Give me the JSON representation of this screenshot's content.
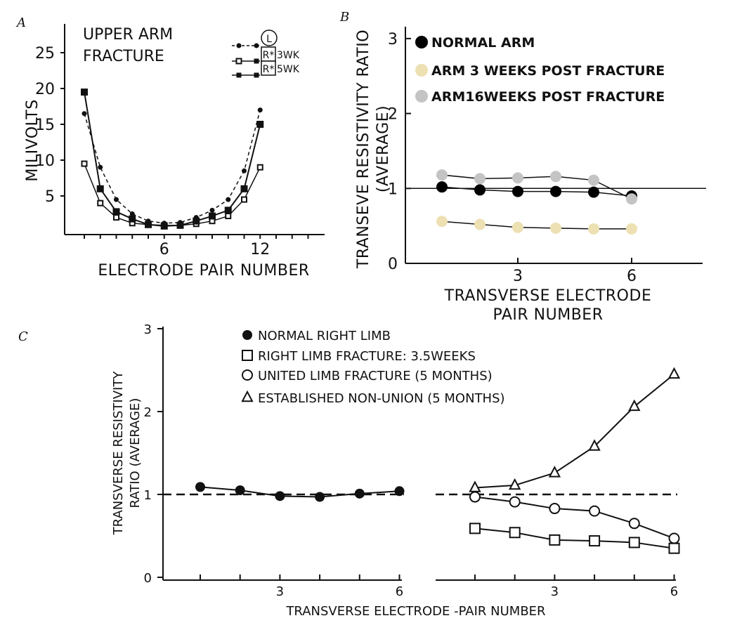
{
  "chart_data": [
    {
      "panel": "A",
      "type": "line",
      "title": [
        "UPPER ARM",
        "FRACTURE"
      ],
      "xlabel": "ELECTRODE PAIR NUMBER",
      "ylabel": "MILIVOLTS",
      "xticks": [
        6,
        12
      ],
      "yticks": [
        5,
        10,
        15,
        20,
        25
      ],
      "xlim": [
        0,
        15
      ],
      "ylim": [
        0,
        30
      ],
      "series": [
        {
          "name": "L",
          "marker": "dot",
          "dashed": true,
          "x": [
            1,
            2,
            3,
            4,
            5,
            6,
            7,
            8,
            9,
            10,
            11,
            12
          ],
          "values": [
            16.5,
            9,
            4.5,
            2.5,
            1.5,
            1.2,
            1.3,
            2,
            3,
            4.5,
            8.5,
            17
          ]
        },
        {
          "name": "R* 3WK",
          "marker": "open-square",
          "dashed": false,
          "x": [
            1,
            2,
            3,
            4,
            5,
            6,
            7,
            8,
            9,
            10,
            11,
            12
          ],
          "values": [
            9.5,
            4,
            2,
            1.2,
            1,
            0.9,
            0.9,
            1.1,
            1.5,
            2.2,
            4.5,
            9
          ]
        },
        {
          "name": "R* 5WK",
          "marker": "filled-square",
          "dashed": false,
          "x": [
            1,
            2,
            3,
            4,
            5,
            6,
            7,
            8,
            9,
            10,
            11,
            12
          ],
          "values": [
            19.5,
            6,
            2.8,
            1.8,
            1,
            0.8,
            0.9,
            1.5,
            2.2,
            3,
            6,
            15
          ]
        }
      ]
    },
    {
      "panel": "B",
      "type": "scatter",
      "xlabel": [
        "TRANSVERSE ELECTRODE",
        "PAIR NUMBER"
      ],
      "ylabel": [
        "TRANSEVE RESISTIVITY RATIO",
        "(AVERAGE)"
      ],
      "xticks": [
        3,
        6
      ],
      "yticks": [
        0,
        1,
        2,
        3
      ],
      "xlim": [
        0,
        7.8
      ],
      "ylim": [
        0,
        3.3
      ],
      "reference_line": 1,
      "series": [
        {
          "name": "NORMAL ARM",
          "color": "#000000",
          "x": [
            1,
            2,
            3,
            4,
            5,
            6
          ],
          "values": [
            1.02,
            0.98,
            0.96,
            0.96,
            0.95,
            0.9
          ]
        },
        {
          "name": "ARM 3 WEEKS POST FRACTURE",
          "color": "#ede0b2",
          "x": [
            1,
            2,
            3,
            4,
            5,
            6
          ],
          "values": [
            0.56,
            0.52,
            0.48,
            0.47,
            0.46,
            0.46
          ]
        },
        {
          "name": "ARM16WEEKS POST FRACTURE",
          "color": "#c4c4c4",
          "x": [
            1,
            2,
            3,
            4,
            5,
            6
          ],
          "values": [
            1.18,
            1.13,
            1.14,
            1.16,
            1.11,
            0.86
          ]
        }
      ]
    },
    {
      "panel": "C",
      "type": "line",
      "xlabel": "TRANSVERSE ELECTRODE -PAIR NUMBER",
      "ylabel": [
        "TRANSVERSE RESISTIVITY",
        "RATIO (AVERAGE)"
      ],
      "xticks": [
        3,
        6
      ],
      "yticks": [
        0,
        1,
        2,
        3
      ],
      "xlim": [
        0,
        6.5
      ],
      "ylim": [
        0,
        3
      ],
      "reference_line": 1,
      "series": [
        {
          "name": "NORMAL RIGHT LIMB",
          "marker": "filled-circle",
          "group": "left",
          "x": [
            1,
            2,
            3,
            4,
            5,
            6
          ],
          "values": [
            1.09,
            1.05,
            0.98,
            0.97,
            1.01,
            1.04
          ]
        },
        {
          "name": "RIGHT LIMB FRACTURE: 3.5WEEKS",
          "marker": "open-square",
          "group": "right",
          "x": [
            1,
            2,
            3,
            4,
            5,
            6
          ],
          "values": [
            0.59,
            0.54,
            0.45,
            0.44,
            0.42,
            0.35
          ]
        },
        {
          "name": "UNITED LIMB FRACTURE (5 MONTHS)",
          "marker": "open-circle",
          "group": "right",
          "x": [
            1,
            2,
            3,
            4,
            5,
            6
          ],
          "values": [
            0.97,
            0.91,
            0.83,
            0.8,
            0.65,
            0.47
          ]
        },
        {
          "name": "ESTABLISHED NON-UNION (5 MONTHS)",
          "marker": "open-triangle",
          "group": "right",
          "x": [
            1,
            2,
            3,
            4,
            5,
            6
          ],
          "values": [
            1.08,
            1.11,
            1.26,
            1.58,
            2.06,
            2.45
          ]
        }
      ]
    }
  ]
}
